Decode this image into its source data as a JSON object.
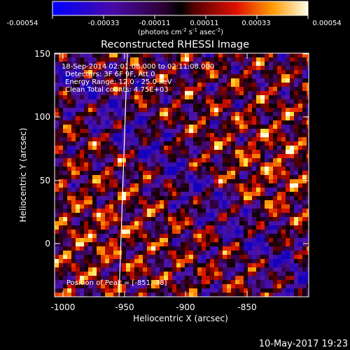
{
  "colorbar": {
    "tick_labels": [
      "-0.00054",
      "-0.00033",
      "-0.00011",
      "0.00011",
      "0.00033",
      "0.00054"
    ],
    "units_prefix": "(photons cm",
    "units_exp1": "-2",
    "units_mid": " s",
    "units_exp2": "-1",
    "units_mid2": " asec",
    "units_exp3": "-2",
    "units_suffix": ")"
  },
  "title": "Reconstructed RHESSI Image",
  "info_lines": [
    "18-Sep-2014 02:01:08.000 to 02:11:08.000",
    "Detectors: 3F 6F 9F, Att 0",
    "Energy Range: 12.0 - 25.0 keV",
    "Clean    Total counts: 4.75E+03"
  ],
  "peak_label": "Position of Peak = [-851,-38]",
  "xaxis": {
    "label": "Heliocentric X (arcsec)",
    "tick_labels": [
      "-1000",
      "-950",
      "-900",
      "-850"
    ]
  },
  "yaxis": {
    "label": "Heliocentric Y (arcsec)",
    "tick_labels": [
      "0",
      "50",
      "100",
      "150"
    ]
  },
  "footer_date": "10-May-2017 19:23",
  "colors": {
    "background": "#000000",
    "text": "#ffffff"
  }
}
